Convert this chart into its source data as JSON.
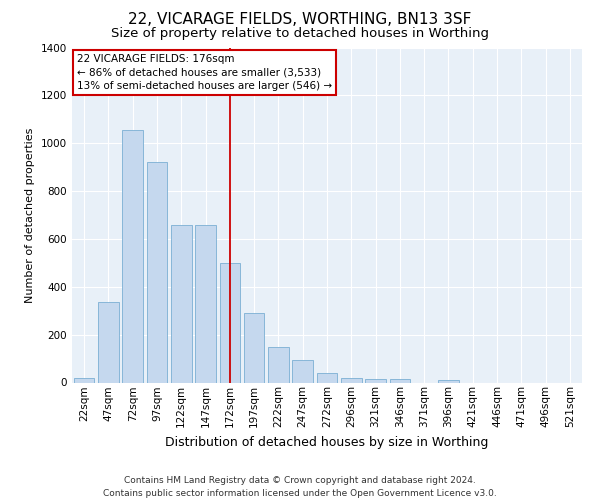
{
  "title": "22, VICARAGE FIELDS, WORTHING, BN13 3SF",
  "subtitle": "Size of property relative to detached houses in Worthing",
  "xlabel": "Distribution of detached houses by size in Worthing",
  "ylabel": "Number of detached properties",
  "categories": [
    "22sqm",
    "47sqm",
    "72sqm",
    "97sqm",
    "122sqm",
    "147sqm",
    "172sqm",
    "197sqm",
    "222sqm",
    "247sqm",
    "272sqm",
    "296sqm",
    "321sqm",
    "346sqm",
    "371sqm",
    "396sqm",
    "421sqm",
    "446sqm",
    "471sqm",
    "496sqm",
    "521sqm"
  ],
  "values": [
    20,
    335,
    1055,
    920,
    660,
    660,
    500,
    290,
    150,
    95,
    40,
    20,
    15,
    15,
    0,
    10,
    0,
    0,
    0,
    0,
    0
  ],
  "bar_color": "#c5d8ee",
  "bar_edge_color": "#7bafd4",
  "vline_x_index": 6,
  "vline_color": "#cc0000",
  "annotation_text": "22 VICARAGE FIELDS: 176sqm\n← 86% of detached houses are smaller (3,533)\n13% of semi-detached houses are larger (546) →",
  "annotation_box_facecolor": "#ffffff",
  "annotation_box_edgecolor": "#cc0000",
  "footer_text": "Contains HM Land Registry data © Crown copyright and database right 2024.\nContains public sector information licensed under the Open Government Licence v3.0.",
  "ylim": [
    0,
    1400
  ],
  "fig_facecolor": "#ffffff",
  "plot_facecolor": "#e8f0f8",
  "grid_color": "#ffffff",
  "title_fontsize": 11,
  "subtitle_fontsize": 9.5,
  "xlabel_fontsize": 9,
  "ylabel_fontsize": 8,
  "tick_fontsize": 7.5,
  "annotation_fontsize": 7.5,
  "footer_fontsize": 6.5
}
